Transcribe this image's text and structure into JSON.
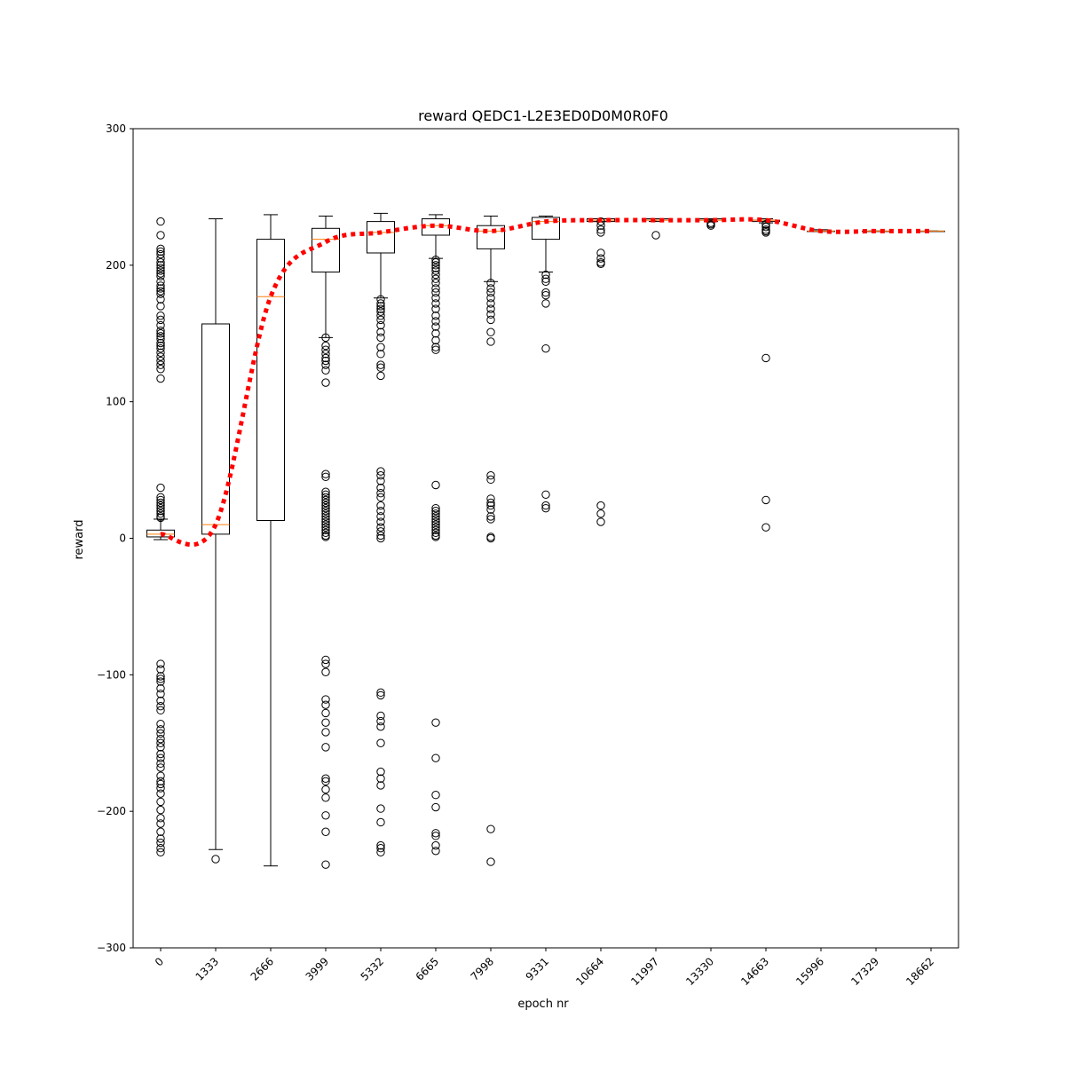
{
  "chart_data": {
    "type": "box",
    "title": "reward QEDC1-L2E3ED0D0M0R0F0",
    "xlabel": "epoch nr",
    "ylabel": "reward",
    "ylim": [
      -300,
      300
    ],
    "yticks": [
      -300,
      -200,
      -100,
      0,
      100,
      200,
      300
    ],
    "ytick_labels": [
      "−300",
      "−200",
      "−100",
      "0",
      "100",
      "200",
      "300"
    ],
    "categories": [
      "0",
      "1333",
      "2666",
      "3999",
      "5332",
      "6665",
      "7998",
      "9331",
      "10664",
      "11997",
      "13330",
      "14663",
      "15996",
      "17329",
      "18662"
    ],
    "boxes": [
      {
        "whislo": -1,
        "q1": 1,
        "med": 3,
        "q3": 6,
        "whishi": 14
      },
      {
        "whislo": -228,
        "q1": 3,
        "med": 10,
        "q3": 157,
        "whishi": 234
      },
      {
        "whislo": -240,
        "q1": 13,
        "med": 177,
        "q3": 219,
        "whishi": 237
      },
      {
        "whislo": 147,
        "q1": 195,
        "med": 219,
        "q3": 227,
        "whishi": 236
      },
      {
        "whislo": 176,
        "q1": 209,
        "med": 224,
        "q3": 232,
        "whishi": 238
      },
      {
        "whislo": 205,
        "q1": 222,
        "med": 229,
        "q3": 234,
        "whishi": 237
      },
      {
        "whislo": 188,
        "q1": 212,
        "med": 225,
        "q3": 229,
        "whishi": 236
      },
      {
        "whislo": 195,
        "q1": 219,
        "med": 232,
        "q3": 235,
        "whishi": 236
      },
      {
        "whislo": 232,
        "q1": 232,
        "med": 233,
        "q3": 234,
        "whishi": 234
      },
      {
        "whislo": 232,
        "q1": 233,
        "med": 233,
        "q3": 234,
        "whishi": 234
      },
      {
        "whislo": 232,
        "q1": 233,
        "med": 233,
        "q3": 234,
        "whishi": 234
      },
      {
        "whislo": 231,
        "q1": 232,
        "med": 233,
        "q3": 233,
        "whishi": 234
      },
      {
        "whislo": 225,
        "q1": 225,
        "med": 225,
        "q3": 225,
        "whishi": 226
      },
      {
        "whislo": 225,
        "q1": 225,
        "med": 225,
        "q3": 225,
        "whishi": 225
      },
      {
        "whislo": 225,
        "q1": 225,
        "med": 225,
        "q3": 225,
        "whishi": 225
      }
    ],
    "fliers": [
      [
        232,
        222,
        212,
        210,
        208,
        205,
        202,
        200,
        198,
        196,
        194,
        192,
        188,
        185,
        183,
        181,
        179,
        175,
        170,
        163,
        160,
        156,
        152,
        150,
        148,
        146,
        143,
        141,
        139,
        136,
        133,
        130,
        127,
        124,
        117,
        37,
        30,
        28,
        26,
        24,
        22,
        20,
        18,
        16,
        15,
        -92,
        -96,
        -101,
        -103,
        -105,
        -110,
        -114,
        -119,
        -123,
        -126,
        -136,
        -140,
        -143,
        -147,
        -150,
        -153,
        -158,
        -161,
        -165,
        -168,
        -174,
        -178,
        -180,
        -183,
        -187,
        -193,
        -199,
        -205,
        -209,
        -215,
        -220,
        -223,
        -227,
        -230
      ],
      [
        -235
      ],
      [],
      [
        147,
        141,
        138,
        135,
        132,
        130,
        127,
        123,
        114,
        47,
        45,
        34,
        32,
        30,
        28,
        26,
        24,
        22,
        20,
        18,
        16,
        14,
        12,
        10,
        8,
        6,
        4,
        2,
        1,
        -89,
        -92,
        -98,
        -118,
        -122,
        -128,
        -135,
        -142,
        -153,
        -176,
        -178,
        -184,
        -190,
        -203,
        -215,
        -239
      ],
      [
        175,
        172,
        170,
        168,
        166,
        163,
        160,
        156,
        151,
        147,
        140,
        135,
        127,
        125,
        119,
        49,
        46,
        42,
        37,
        33,
        30,
        24,
        20,
        16,
        12,
        8,
        5,
        2,
        0,
        -113,
        -115,
        -130,
        -134,
        -138,
        -150,
        -171,
        -176,
        -181,
        -198,
        -208,
        -225,
        -227,
        -230
      ],
      [
        204,
        202,
        200,
        198,
        196,
        193,
        190,
        187,
        183,
        180,
        176,
        172,
        168,
        163,
        159,
        155,
        150,
        145,
        140,
        138,
        39,
        22,
        20,
        18,
        16,
        14,
        12,
        10,
        8,
        6,
        4,
        2,
        1,
        -135,
        -161,
        -188,
        -197,
        -216,
        -218,
        -225,
        -229
      ],
      [
        187,
        183,
        180,
        176,
        172,
        168,
        164,
        160,
        151,
        144,
        46,
        43,
        29,
        26,
        24,
        21,
        16,
        14,
        1,
        0,
        -213,
        -237
      ],
      [
        193,
        190,
        188,
        180,
        178,
        172,
        139,
        32,
        24,
        22
      ],
      [
        232,
        229,
        226,
        224,
        209,
        205,
        202,
        201,
        24,
        18,
        12
      ],
      [
        222
      ],
      [
        231,
        230,
        229
      ],
      [
        230,
        228,
        226,
        225,
        224,
        132,
        28,
        8
      ],
      [],
      [],
      []
    ],
    "mean_line": [
      3,
      10,
      177,
      217,
      224,
      229,
      225,
      232,
      233,
      233,
      233,
      233,
      225,
      225,
      225
    ]
  }
}
